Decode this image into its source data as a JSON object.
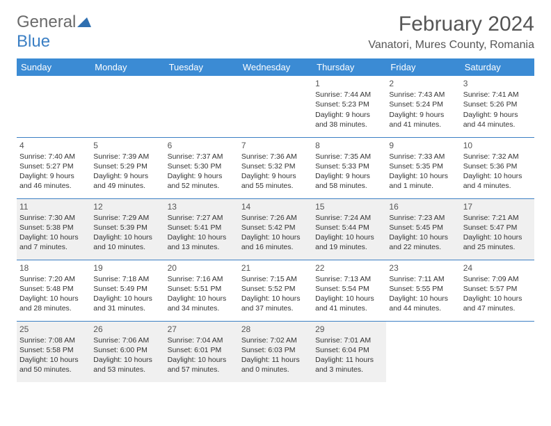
{
  "logo": {
    "text1": "General",
    "text2": "Blue",
    "triangle_color": "#2f6fb0"
  },
  "title": "February 2024",
  "location": "Vanatori, Mures County, Romania",
  "colors": {
    "header_bg": "#3b8bd4",
    "header_fg": "#ffffff",
    "border": "#3b7fc4",
    "shade_bg": "#f0f0f0",
    "text": "#333333",
    "title_color": "#555555"
  },
  "day_headers": [
    "Sunday",
    "Monday",
    "Tuesday",
    "Wednesday",
    "Thursday",
    "Friday",
    "Saturday"
  ],
  "weeks": [
    [
      null,
      null,
      null,
      null,
      {
        "n": "1",
        "sr": "7:44 AM",
        "ss": "5:23 PM",
        "dl": "9 hours and 38 minutes."
      },
      {
        "n": "2",
        "sr": "7:43 AM",
        "ss": "5:24 PM",
        "dl": "9 hours and 41 minutes."
      },
      {
        "n": "3",
        "sr": "7:41 AM",
        "ss": "5:26 PM",
        "dl": "9 hours and 44 minutes."
      }
    ],
    [
      {
        "n": "4",
        "sr": "7:40 AM",
        "ss": "5:27 PM",
        "dl": "9 hours and 46 minutes."
      },
      {
        "n": "5",
        "sr": "7:39 AM",
        "ss": "5:29 PM",
        "dl": "9 hours and 49 minutes."
      },
      {
        "n": "6",
        "sr": "7:37 AM",
        "ss": "5:30 PM",
        "dl": "9 hours and 52 minutes."
      },
      {
        "n": "7",
        "sr": "7:36 AM",
        "ss": "5:32 PM",
        "dl": "9 hours and 55 minutes."
      },
      {
        "n": "8",
        "sr": "7:35 AM",
        "ss": "5:33 PM",
        "dl": "9 hours and 58 minutes."
      },
      {
        "n": "9",
        "sr": "7:33 AM",
        "ss": "5:35 PM",
        "dl": "10 hours and 1 minute."
      },
      {
        "n": "10",
        "sr": "7:32 AM",
        "ss": "5:36 PM",
        "dl": "10 hours and 4 minutes."
      }
    ],
    [
      {
        "n": "11",
        "sr": "7:30 AM",
        "ss": "5:38 PM",
        "dl": "10 hours and 7 minutes."
      },
      {
        "n": "12",
        "sr": "7:29 AM",
        "ss": "5:39 PM",
        "dl": "10 hours and 10 minutes."
      },
      {
        "n": "13",
        "sr": "7:27 AM",
        "ss": "5:41 PM",
        "dl": "10 hours and 13 minutes."
      },
      {
        "n": "14",
        "sr": "7:26 AM",
        "ss": "5:42 PM",
        "dl": "10 hours and 16 minutes."
      },
      {
        "n": "15",
        "sr": "7:24 AM",
        "ss": "5:44 PM",
        "dl": "10 hours and 19 minutes."
      },
      {
        "n": "16",
        "sr": "7:23 AM",
        "ss": "5:45 PM",
        "dl": "10 hours and 22 minutes."
      },
      {
        "n": "17",
        "sr": "7:21 AM",
        "ss": "5:47 PM",
        "dl": "10 hours and 25 minutes."
      }
    ],
    [
      {
        "n": "18",
        "sr": "7:20 AM",
        "ss": "5:48 PM",
        "dl": "10 hours and 28 minutes."
      },
      {
        "n": "19",
        "sr": "7:18 AM",
        "ss": "5:49 PM",
        "dl": "10 hours and 31 minutes."
      },
      {
        "n": "20",
        "sr": "7:16 AM",
        "ss": "5:51 PM",
        "dl": "10 hours and 34 minutes."
      },
      {
        "n": "21",
        "sr": "7:15 AM",
        "ss": "5:52 PM",
        "dl": "10 hours and 37 minutes."
      },
      {
        "n": "22",
        "sr": "7:13 AM",
        "ss": "5:54 PM",
        "dl": "10 hours and 41 minutes."
      },
      {
        "n": "23",
        "sr": "7:11 AM",
        "ss": "5:55 PM",
        "dl": "10 hours and 44 minutes."
      },
      {
        "n": "24",
        "sr": "7:09 AM",
        "ss": "5:57 PM",
        "dl": "10 hours and 47 minutes."
      }
    ],
    [
      {
        "n": "25",
        "sr": "7:08 AM",
        "ss": "5:58 PM",
        "dl": "10 hours and 50 minutes."
      },
      {
        "n": "26",
        "sr": "7:06 AM",
        "ss": "6:00 PM",
        "dl": "10 hours and 53 minutes."
      },
      {
        "n": "27",
        "sr": "7:04 AM",
        "ss": "6:01 PM",
        "dl": "10 hours and 57 minutes."
      },
      {
        "n": "28",
        "sr": "7:02 AM",
        "ss": "6:03 PM",
        "dl": "11 hours and 0 minutes."
      },
      {
        "n": "29",
        "sr": "7:01 AM",
        "ss": "6:04 PM",
        "dl": "11 hours and 3 minutes."
      },
      null,
      null
    ]
  ],
  "shaded_rows": [
    2,
    4
  ],
  "labels": {
    "sunrise": "Sunrise:",
    "sunset": "Sunset:",
    "daylight": "Daylight:"
  }
}
